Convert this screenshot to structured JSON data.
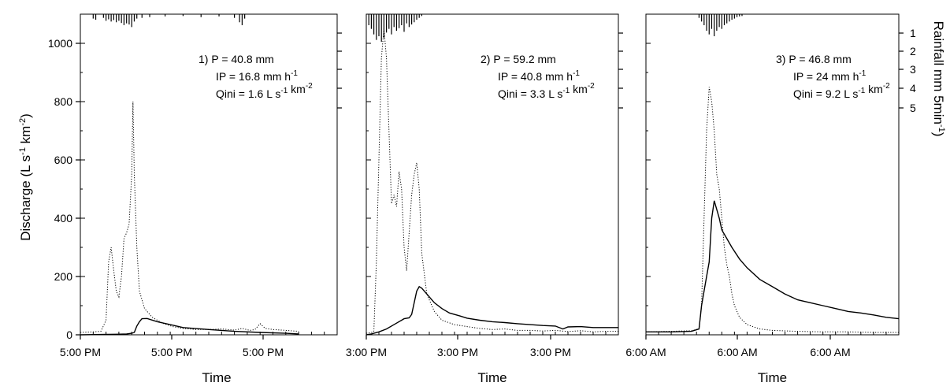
{
  "figure": {
    "ylabel_left": {
      "base": "Discharge (L s",
      "sup1": "-1",
      "mid": " km",
      "sup2": "-2",
      "end": ")"
    },
    "ylabel_right": {
      "base": "Rainfall mm 5min",
      "sup1": "-1",
      "end": ")"
    },
    "xlabel": "Time"
  },
  "chart_data": [
    {
      "type": "line",
      "panel": "1",
      "xlabel": "Time",
      "xtick_labels": [
        "5:00 PM",
        "5:00 PM",
        "5:00 PM"
      ],
      "ylim": [
        0,
        1100
      ],
      "yticks": [
        0,
        200,
        400,
        600,
        800,
        1000
      ],
      "rain_ticks": [
        1,
        2,
        3,
        4,
        5
      ],
      "xlim": [
        0,
        100
      ],
      "annotation": [
        {
          "parts": [
            {
              "t": "1)  P = 40.8 mm"
            }
          ]
        },
        {
          "parts": [
            {
              "t": "IP = 16.8 mm h"
            },
            {
              "t": "-1",
              "sup": true
            }
          ]
        },
        {
          "parts": [
            {
              "t": "Qini = 1.6 L s"
            },
            {
              "t": "-1",
              "sup": true
            },
            {
              "t": " km"
            },
            {
              "t": "-2",
              "sup": true
            }
          ]
        }
      ],
      "series": [
        {
          "style": "dotted",
          "points": [
            [
              0,
              8
            ],
            [
              5,
              10
            ],
            [
              8,
              12
            ],
            [
              10,
              50
            ],
            [
              11,
              250
            ],
            [
              12,
              300
            ],
            [
              13,
              220
            ],
            [
              14,
              150
            ],
            [
              15,
              130
            ],
            [
              16,
              200
            ],
            [
              17,
              330
            ],
            [
              18,
              350
            ],
            [
              19,
              380
            ],
            [
              20,
              550
            ],
            [
              20.5,
              800
            ],
            [
              21,
              550
            ],
            [
              22,
              300
            ],
            [
              23,
              150
            ],
            [
              25,
              90
            ],
            [
              28,
              60
            ],
            [
              32,
              40
            ],
            [
              36,
              28
            ],
            [
              40,
              22
            ],
            [
              45,
              18
            ],
            [
              50,
              18
            ],
            [
              55,
              20
            ],
            [
              60,
              16
            ],
            [
              63,
              22
            ],
            [
              66,
              15
            ],
            [
              68,
              18
            ],
            [
              70,
              38
            ],
            [
              72,
              22
            ],
            [
              75,
              18
            ],
            [
              80,
              15
            ],
            [
              85,
              12
            ]
          ]
        },
        {
          "style": "solid",
          "points": [
            [
              0,
              0
            ],
            [
              14,
              2
            ],
            [
              18,
              3
            ],
            [
              20,
              5
            ],
            [
              21,
              8
            ],
            [
              22,
              30
            ],
            [
              23,
              45
            ],
            [
              24,
              55
            ],
            [
              26,
              56
            ],
            [
              30,
              45
            ],
            [
              35,
              35
            ],
            [
              40,
              25
            ],
            [
              50,
              18
            ],
            [
              60,
              12
            ],
            [
              70,
              8
            ],
            [
              80,
              5
            ],
            [
              85,
              3
            ]
          ]
        }
      ],
      "rain": [
        [
          5,
          12
        ],
        [
          6,
          15
        ],
        [
          9,
          10
        ],
        [
          10,
          18
        ],
        [
          11,
          14
        ],
        [
          12,
          20
        ],
        [
          13,
          16
        ],
        [
          14,
          22
        ],
        [
          15,
          18
        ],
        [
          16,
          24
        ],
        [
          17,
          30
        ],
        [
          18,
          25
        ],
        [
          19,
          28
        ],
        [
          20,
          35
        ],
        [
          21,
          20
        ],
        [
          22,
          12
        ],
        [
          24,
          10
        ],
        [
          27,
          8
        ],
        [
          33,
          6
        ],
        [
          40,
          5
        ],
        [
          47,
          8
        ],
        [
          54,
          6
        ],
        [
          60,
          10
        ],
        [
          62,
          22
        ],
        [
          63,
          30
        ],
        [
          64,
          12
        ]
      ]
    },
    {
      "type": "line",
      "panel": "2",
      "xlabel": "Time",
      "xtick_labels": [
        "3:00 PM",
        "3:00 PM",
        "3:00 PM"
      ],
      "ylim": [
        0,
        1100
      ],
      "rain_ticks": [
        1,
        2,
        3,
        4,
        5
      ],
      "xlim": [
        0,
        100
      ],
      "annotation": [
        {
          "parts": [
            {
              "t": "2)  P = 59.2 mm"
            }
          ]
        },
        {
          "parts": [
            {
              "t": "IP = 40.8 mm h"
            },
            {
              "t": "-1",
              "sup": true
            }
          ]
        },
        {
          "parts": [
            {
              "t": "Qini = 3.3 L s"
            },
            {
              "t": "-1",
              "sup": true
            },
            {
              "t": " km"
            },
            {
              "t": "-2",
              "sup": true
            }
          ]
        }
      ],
      "series": [
        {
          "style": "dotted",
          "points": [
            [
              0,
              5
            ],
            [
              2,
              8
            ],
            [
              3,
              12
            ],
            [
              4,
              250
            ],
            [
              5,
              600
            ],
            [
              6,
              950
            ],
            [
              7,
              1050
            ],
            [
              8,
              950
            ],
            [
              9,
              700
            ],
            [
              10,
              450
            ],
            [
              11,
              480
            ],
            [
              12,
              440
            ],
            [
              13,
              560
            ],
            [
              14,
              500
            ],
            [
              15,
              300
            ],
            [
              16,
              220
            ],
            [
              17,
              350
            ],
            [
              18,
              480
            ],
            [
              19,
              550
            ],
            [
              20,
              590
            ],
            [
              21,
              500
            ],
            [
              22,
              280
            ],
            [
              24,
              140
            ],
            [
              27,
              80
            ],
            [
              30,
              50
            ],
            [
              35,
              35
            ],
            [
              40,
              28
            ],
            [
              45,
              22
            ],
            [
              50,
              18
            ],
            [
              55,
              20
            ],
            [
              60,
              15
            ],
            [
              65,
              15
            ],
            [
              70,
              13
            ],
            [
              75,
              15
            ],
            [
              80,
              11
            ],
            [
              85,
              14
            ],
            [
              90,
              10
            ],
            [
              95,
              12
            ],
            [
              100,
              12
            ]
          ]
        },
        {
          "style": "solid",
          "points": [
            [
              0,
              0
            ],
            [
              2,
              3
            ],
            [
              5,
              10
            ],
            [
              8,
              20
            ],
            [
              12,
              40
            ],
            [
              15,
              55
            ],
            [
              17,
              58
            ],
            [
              18,
              70
            ],
            [
              19,
              110
            ],
            [
              20,
              150
            ],
            [
              21,
              165
            ],
            [
              22,
              160
            ],
            [
              24,
              140
            ],
            [
              27,
              110
            ],
            [
              30,
              90
            ],
            [
              33,
              75
            ],
            [
              37,
              65
            ],
            [
              40,
              57
            ],
            [
              45,
              50
            ],
            [
              50,
              45
            ],
            [
              55,
              42
            ],
            [
              60,
              38
            ],
            [
              65,
              35
            ],
            [
              70,
              32
            ],
            [
              75,
              30
            ],
            [
              78,
              20
            ],
            [
              80,
              27
            ],
            [
              85,
              28
            ],
            [
              90,
              25
            ],
            [
              95,
              25
            ],
            [
              100,
              25
            ]
          ]
        }
      ],
      "rain": [
        [
          1,
          30
        ],
        [
          2,
          40
        ],
        [
          3,
          55
        ],
        [
          4,
          70
        ],
        [
          5,
          60
        ],
        [
          6,
          75
        ],
        [
          7,
          65
        ],
        [
          8,
          50
        ],
        [
          9,
          40
        ],
        [
          10,
          55
        ],
        [
          11,
          35
        ],
        [
          12,
          45
        ],
        [
          13,
          38
        ],
        [
          14,
          30
        ],
        [
          15,
          48
        ],
        [
          16,
          25
        ],
        [
          17,
          35
        ],
        [
          18,
          28
        ],
        [
          19,
          22
        ],
        [
          20,
          15
        ],
        [
          21,
          10
        ],
        [
          22,
          5
        ]
      ]
    },
    {
      "type": "line",
      "panel": "3",
      "xlabel": "Time",
      "xtick_labels": [
        "6:00 AM",
        "6:00 AM",
        "6:00 AM"
      ],
      "ylim": [
        0,
        1100
      ],
      "rain_ticks": [
        1,
        2,
        3,
        4,
        5
      ],
      "xlim": [
        0,
        100
      ],
      "annotation": [
        {
          "parts": [
            {
              "t": "3)  P = 46.8 mm"
            }
          ]
        },
        {
          "parts": [
            {
              "t": "IP = 24 mm h"
            },
            {
              "t": "-1",
              "sup": true
            }
          ]
        },
        {
          "parts": [
            {
              "t": "Qini = 9.2 L s"
            },
            {
              "t": "-1",
              "sup": true
            },
            {
              "t": " km"
            },
            {
              "t": "-2",
              "sup": true
            }
          ]
        }
      ],
      "series": [
        {
          "style": "dotted",
          "points": [
            [
              0,
              10
            ],
            [
              10,
              12
            ],
            [
              18,
              14
            ],
            [
              21,
              20
            ],
            [
              22,
              100
            ],
            [
              23,
              400
            ],
            [
              24,
              700
            ],
            [
              25,
              850
            ],
            [
              26,
              800
            ],
            [
              27,
              700
            ],
            [
              28,
              550
            ],
            [
              29,
              500
            ],
            [
              30,
              400
            ],
            [
              31,
              300
            ],
            [
              32,
              240
            ],
            [
              33,
              200
            ],
            [
              34,
              140
            ],
            [
              35,
              100
            ],
            [
              37,
              60
            ],
            [
              40,
              35
            ],
            [
              45,
              20
            ],
            [
              50,
              15
            ],
            [
              60,
              12
            ],
            [
              70,
              10
            ],
            [
              80,
              10
            ],
            [
              90,
              8
            ],
            [
              100,
              8
            ]
          ]
        },
        {
          "style": "solid",
          "points": [
            [
              0,
              10
            ],
            [
              10,
              10
            ],
            [
              18,
              12
            ],
            [
              21,
              20
            ],
            [
              22,
              100
            ],
            [
              23,
              150
            ],
            [
              24,
              200
            ],
            [
              25,
              250
            ],
            [
              26,
              400
            ],
            [
              27,
              460
            ],
            [
              28,
              430
            ],
            [
              29,
              400
            ],
            [
              30,
              360
            ],
            [
              32,
              330
            ],
            [
              34,
              300
            ],
            [
              37,
              260
            ],
            [
              40,
              230
            ],
            [
              45,
              190
            ],
            [
              50,
              165
            ],
            [
              55,
              140
            ],
            [
              60,
              120
            ],
            [
              65,
              110
            ],
            [
              70,
              100
            ],
            [
              75,
              90
            ],
            [
              80,
              80
            ],
            [
              85,
              75
            ],
            [
              90,
              68
            ],
            [
              95,
              60
            ],
            [
              100,
              55
            ]
          ]
        }
      ],
      "rain": [
        [
          21,
          10
        ],
        [
          22,
          20
        ],
        [
          23,
          30
        ],
        [
          24,
          45
        ],
        [
          25,
          55
        ],
        [
          26,
          40
        ],
        [
          27,
          60
        ],
        [
          28,
          45
        ],
        [
          29,
          35
        ],
        [
          30,
          40
        ],
        [
          31,
          30
        ],
        [
          32,
          25
        ],
        [
          33,
          20
        ],
        [
          34,
          15
        ],
        [
          35,
          12
        ],
        [
          36,
          8
        ],
        [
          37,
          6
        ],
        [
          38,
          5
        ]
      ]
    }
  ]
}
